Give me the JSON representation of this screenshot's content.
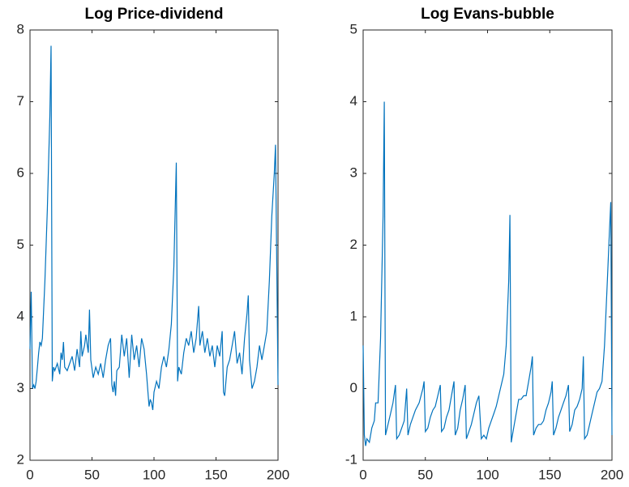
{
  "chart_data": [
    {
      "type": "line",
      "title": "Log Price-dividend",
      "color": "#0072bd",
      "xlim": [
        0,
        200
      ],
      "xticks": [
        0,
        50,
        100,
        150,
        200
      ],
      "ylim": [
        2,
        8
      ],
      "yticks": [
        2,
        3,
        4,
        5,
        6,
        7,
        8
      ],
      "x": [
        0,
        1,
        2,
        3,
        4,
        5,
        6,
        7,
        8,
        9,
        10,
        12,
        14,
        16,
        17,
        18,
        19,
        20,
        22,
        24,
        25,
        26,
        27,
        28,
        30,
        32,
        34,
        36,
        38,
        40,
        41,
        42,
        44,
        45,
        47,
        48,
        49,
        51,
        53,
        55,
        57,
        59,
        61,
        63,
        65,
        66,
        67,
        68,
        69,
        70,
        72,
        74,
        76,
        78,
        80,
        82,
        84,
        86,
        88,
        90,
        92,
        94,
        96,
        97,
        98,
        99,
        100,
        102,
        104,
        106,
        108,
        110,
        112,
        114,
        116,
        118,
        119,
        120,
        122,
        124,
        126,
        128,
        130,
        132,
        134,
        136,
        137,
        139,
        141,
        143,
        145,
        147,
        149,
        151,
        153,
        155,
        156,
        157,
        159,
        161,
        163,
        165,
        167,
        169,
        171,
        173,
        175,
        176,
        177,
        179,
        181,
        183,
        185,
        187,
        189,
        191,
        193,
        195,
        197,
        198,
        200
      ],
      "values": [
        3.55,
        4.35,
        3.0,
        3.05,
        3.0,
        3.1,
        3.3,
        3.5,
        3.65,
        3.6,
        3.7,
        4.5,
        5.5,
        6.8,
        7.78,
        3.1,
        3.3,
        3.25,
        3.35,
        3.2,
        3.5,
        3.4,
        3.65,
        3.3,
        3.25,
        3.35,
        3.45,
        3.25,
        3.55,
        3.3,
        3.8,
        3.45,
        3.6,
        3.75,
        3.5,
        4.1,
        3.4,
        3.15,
        3.3,
        3.2,
        3.35,
        3.15,
        3.4,
        3.6,
        3.7,
        3.05,
        2.95,
        3.1,
        2.9,
        3.25,
        3.3,
        3.75,
        3.45,
        3.7,
        3.15,
        3.75,
        3.4,
        3.6,
        3.3,
        3.7,
        3.55,
        3.2,
        2.75,
        2.85,
        2.8,
        2.7,
        2.95,
        3.1,
        3.0,
        3.3,
        3.45,
        3.3,
        3.55,
        3.9,
        4.7,
        6.15,
        3.1,
        3.3,
        3.2,
        3.5,
        3.7,
        3.6,
        3.8,
        3.5,
        3.7,
        4.15,
        3.6,
        3.8,
        3.5,
        3.7,
        3.45,
        3.6,
        3.3,
        3.6,
        3.45,
        3.8,
        2.95,
        2.9,
        3.3,
        3.4,
        3.6,
        3.8,
        3.35,
        3.5,
        3.2,
        3.7,
        4.05,
        4.3,
        3.4,
        3.0,
        3.1,
        3.3,
        3.6,
        3.4,
        3.6,
        3.8,
        4.5,
        5.4,
        6.0,
        6.4,
        3.05
      ]
    },
    {
      "type": "line",
      "title": "Log Evans-bubble",
      "color": "#0072bd",
      "xlim": [
        0,
        200
      ],
      "xticks": [
        0,
        50,
        100,
        150,
        200
      ],
      "ylim": [
        -1,
        5
      ],
      "yticks": [
        -1,
        0,
        1,
        2,
        3,
        4,
        5
      ],
      "x": [
        0,
        1,
        2,
        3,
        5,
        7,
        9,
        10,
        12,
        14,
        16,
        17,
        18,
        20,
        22,
        24,
        26,
        27,
        29,
        31,
        33,
        35,
        36,
        38,
        40,
        42,
        45,
        48,
        49,
        50,
        52,
        54,
        56,
        58,
        60,
        62,
        63,
        65,
        67,
        69,
        71,
        73,
        74,
        76,
        78,
        80,
        82,
        83,
        85,
        87,
        89,
        91,
        93,
        95,
        97,
        99,
        101,
        103,
        105,
        107,
        109,
        111,
        113,
        115,
        117,
        118,
        119,
        121,
        123,
        125,
        127,
        129,
        131,
        133,
        135,
        136,
        137,
        139,
        141,
        143,
        145,
        147,
        149,
        151,
        152,
        153,
        155,
        157,
        159,
        161,
        163,
        165,
        166,
        168,
        170,
        172,
        174,
        176,
        177,
        178,
        180,
        182,
        184,
        186,
        188,
        190,
        192,
        194,
        196,
        198,
        199,
        200
      ],
      "values": [
        0.6,
        -0.65,
        -0.8,
        -0.7,
        -0.75,
        -0.55,
        -0.45,
        -0.2,
        -0.2,
        0.7,
        2.4,
        4.0,
        -0.65,
        -0.5,
        -0.35,
        -0.2,
        0.05,
        -0.7,
        -0.65,
        -0.55,
        -0.45,
        0.0,
        -0.65,
        -0.5,
        -0.4,
        -0.3,
        -0.2,
        0.0,
        0.1,
        -0.6,
        -0.55,
        -0.4,
        -0.3,
        -0.25,
        -0.1,
        0.05,
        -0.6,
        -0.55,
        -0.4,
        -0.3,
        -0.1,
        0.1,
        -0.65,
        -0.55,
        -0.3,
        -0.15,
        0.05,
        -0.7,
        -0.6,
        -0.5,
        -0.35,
        -0.2,
        -0.1,
        -0.7,
        -0.65,
        -0.7,
        -0.55,
        -0.45,
        -0.35,
        -0.25,
        -0.1,
        0.05,
        0.2,
        0.6,
        1.5,
        2.42,
        -0.75,
        -0.55,
        -0.35,
        -0.15,
        -0.15,
        -0.1,
        -0.1,
        0.1,
        0.3,
        0.45,
        -0.65,
        -0.55,
        -0.5,
        -0.5,
        -0.45,
        -0.3,
        -0.2,
        -0.05,
        0.1,
        -0.65,
        -0.55,
        -0.4,
        -0.3,
        -0.2,
        -0.1,
        0.05,
        -0.6,
        -0.5,
        -0.3,
        -0.25,
        -0.15,
        0.0,
        0.45,
        -0.7,
        -0.65,
        -0.5,
        -0.35,
        -0.2,
        -0.05,
        0.0,
        0.1,
        0.6,
        1.4,
        2.2,
        2.6,
        -0.65
      ]
    }
  ]
}
